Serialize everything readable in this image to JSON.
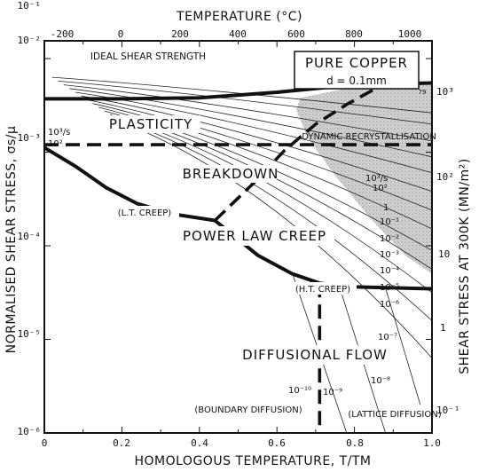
{
  "chart_data": {
    "type": "line",
    "title": "PURE COPPER",
    "subtitle": "d = 0.1mm",
    "figure_number": "79",
    "xlabel": "HOMOLOGOUS TEMPERATURE, T/TM",
    "ylabel": "NORMALISED SHEAR STRESS, σs/μ",
    "top_label": "TEMPERATURE (°C)",
    "right_label": "SHEAR STRESS AT 300K (MN/m²)",
    "xlim": [
      0,
      1.0
    ],
    "ylim_log10": [
      -6,
      -2
    ],
    "x_ticks": [
      "0",
      "0.2",
      "0.4",
      "0.6",
      "0.8",
      "1.0"
    ],
    "y_ticks": [
      "10⁻⁶",
      "10⁻⁵",
      "10⁻⁴",
      "10⁻³",
      "10⁻²",
      "10⁻¹"
    ],
    "top_ticks": [
      "-200",
      "0",
      "200",
      "400",
      "600",
      "800",
      "1000"
    ],
    "right_ticks": [
      "10⁻¹",
      "1",
      "10",
      "10²",
      "10³"
    ],
    "regions": [
      "PLASTICITY",
      "BREAKDOWN",
      "POWER LAW CREEP",
      "DIFFUSIONAL FLOW"
    ],
    "annotations": [
      "IDEAL SHEAR STRENGTH",
      "DYNAMIC RECRYSTALLISATION",
      "(L.T. CREEP)",
      "(H.T. CREEP)",
      "(BOUNDARY DIFFUSION)",
      "(LATTICE DIFFUSION)"
    ],
    "strain_rate_labels_left": [
      "10³/s",
      "10²"
    ],
    "strain_rate_labels_right": [
      "10³/s",
      "10²",
      "1",
      "10⁻¹",
      "10⁻²",
      "10⁻³",
      "10⁻⁴",
      "10⁻⁵",
      "10⁻⁶",
      "10⁻⁷",
      "10⁻⁸",
      "10⁻⁹",
      "10⁻¹⁰"
    ],
    "series": [
      {
        "kind": "ideal-shear-strength",
        "style": "dashed",
        "points": [
          [
            0,
            -1.26
          ],
          [
            0.94,
            -1.26
          ]
        ]
      },
      {
        "kind": "plasticity-boundary",
        "style": "thick",
        "points": [
          [
            0,
            -2.43
          ],
          [
            0.2,
            -2.43
          ],
          [
            0.4,
            -2.42
          ],
          [
            0.6,
            -2.36
          ],
          [
            0.8,
            -2.28
          ],
          [
            1.0,
            -2.26
          ]
        ]
      },
      {
        "kind": "breakdown-boundary",
        "style": "dashed",
        "points": [
          [
            0,
            -2.92
          ],
          [
            1.0,
            -2.92
          ]
        ]
      },
      {
        "kind": "power-law-lower-left",
        "style": "thick",
        "points": [
          [
            0,
            -2.95
          ],
          [
            0.08,
            -3.15
          ],
          [
            0.16,
            -3.38
          ],
          [
            0.24,
            -3.55
          ],
          [
            0.33,
            -3.66
          ],
          [
            0.44,
            -3.73
          ]
        ]
      },
      {
        "kind": "power-law-lower-right",
        "style": "thick",
        "points": [
          [
            0.44,
            -3.73
          ],
          [
            0.55,
            -4.1
          ],
          [
            0.64,
            -4.3
          ],
          [
            0.71,
            -4.4
          ],
          [
            0.8,
            -4.44
          ],
          [
            1.0,
            -4.46
          ]
        ]
      },
      {
        "kind": "dynamic-recrystallisation",
        "style": "dashed",
        "points": [
          [
            0.44,
            -3.73
          ],
          [
            0.54,
            -3.33
          ],
          [
            0.62,
            -2.98
          ],
          [
            0.7,
            -2.7
          ],
          [
            0.78,
            -2.49
          ],
          [
            0.85,
            -2.33
          ],
          [
            0.9,
            -2.25
          ]
        ]
      },
      {
        "kind": "boundary-lattice-diffusion",
        "style": "dashed",
        "points": [
          [
            0.71,
            -4.4
          ],
          [
            0.71,
            -6.0
          ]
        ]
      }
    ]
  }
}
